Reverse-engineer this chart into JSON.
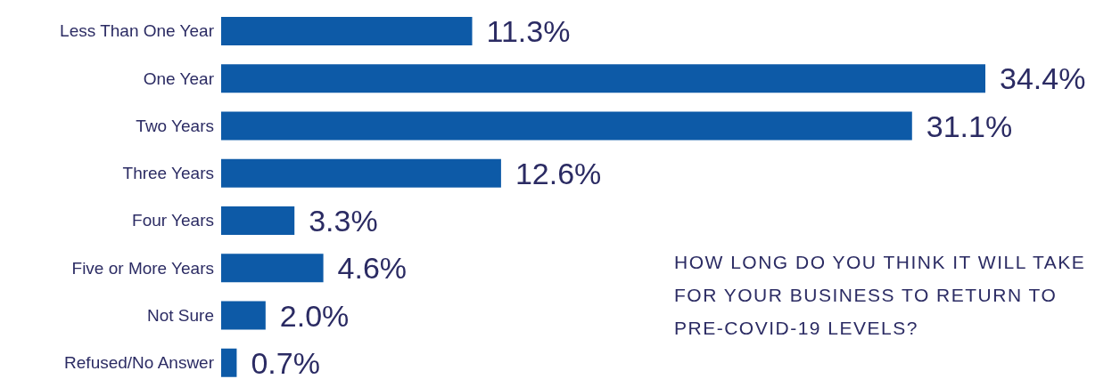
{
  "chart_data": {
    "type": "bar",
    "orientation": "horizontal",
    "title": "HOW LONG DO YOU THINK IT WILL TAKE FOR YOUR BUSINESS TO RETURN TO PRE-COVID-19 LEVELS?",
    "categories": [
      "Less Than One Year",
      "One Year",
      "Two Years",
      "Three Years",
      "Four Years",
      "Five or More Years",
      "Not Sure",
      "Refused/No Answer"
    ],
    "values": [
      11.3,
      34.4,
      31.1,
      12.6,
      3.3,
      4.6,
      2.0,
      0.7
    ],
    "value_labels": [
      "11.3%",
      "34.4%",
      "31.1%",
      "12.6%",
      "3.3%",
      "4.6%",
      "2.0%",
      "0.7%"
    ],
    "color": "#0d5aa7",
    "grid": false,
    "legend": false
  }
}
